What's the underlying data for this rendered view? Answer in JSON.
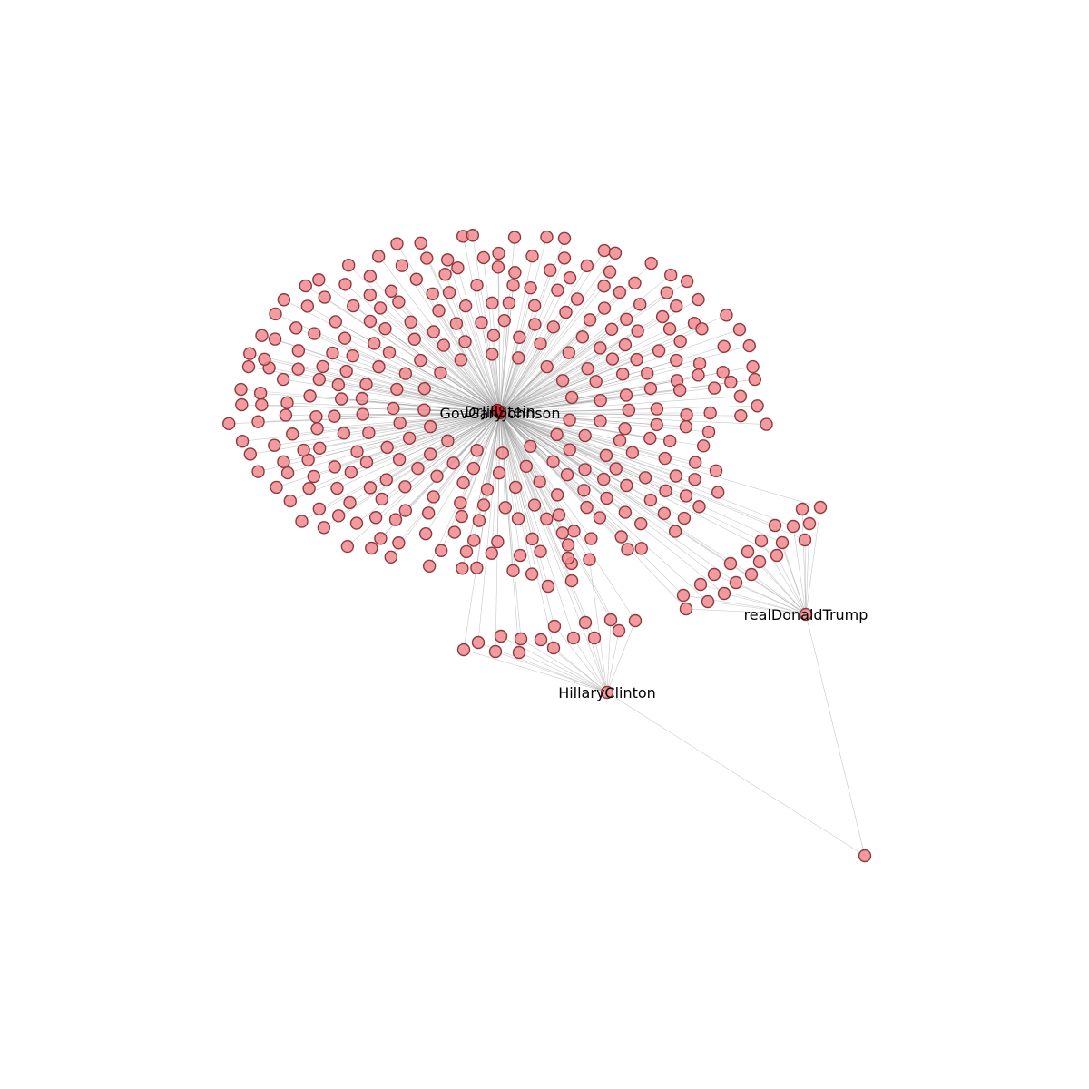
{
  "graph": {
    "hubs": [
      {
        "id": "GovGaryJohnson",
        "label": "GovGaryJohnson"
      },
      {
        "id": "DrJillStein",
        "label": "DrJillStein"
      },
      {
        "id": "realDonaldTrump",
        "label": "realDonaldTrump"
      },
      {
        "id": "HillaryClinton",
        "label": "HillaryClinton"
      }
    ],
    "node_color": "#f28a8e",
    "hub_color": "#d9212c",
    "edge_color": "#9a9a9a"
  }
}
